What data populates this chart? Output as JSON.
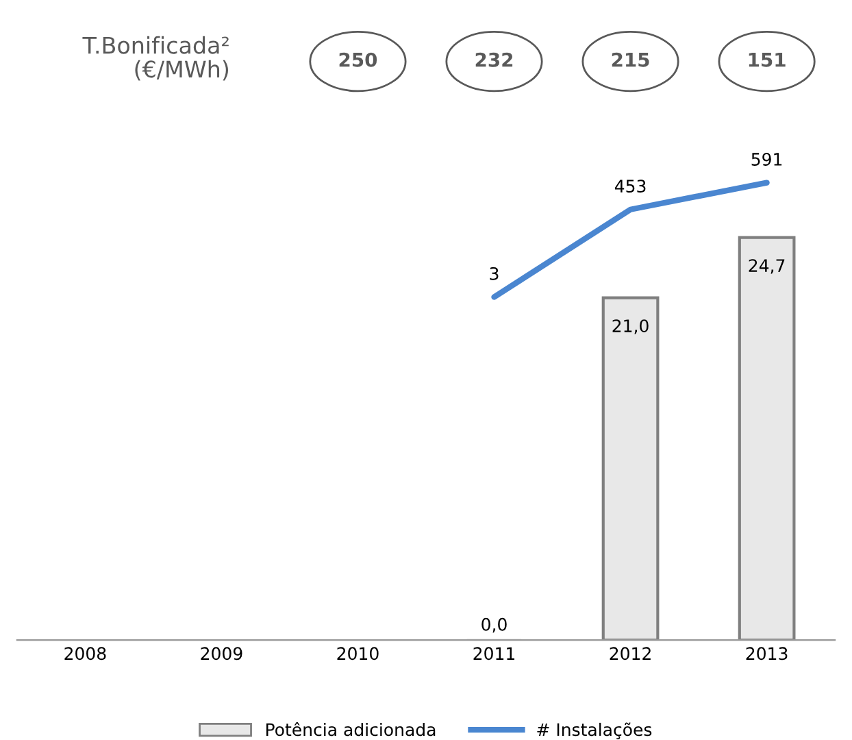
{
  "chart_data": {
    "type": "bar",
    "categories": [
      "2008",
      "2009",
      "2010",
      "2011",
      "2012",
      "2013"
    ],
    "series": [
      {
        "name": "Potência adicionada",
        "color": "#e8e8e8",
        "values": [
          null,
          null,
          null,
          0.0,
          21.0,
          24.7
        ],
        "value_labels": [
          null,
          null,
          null,
          "0,0",
          "21,0",
          "24,7"
        ]
      },
      {
        "name": "# Instalações",
        "type": "line",
        "axis": "y2",
        "color": "#4a86d0",
        "values": [
          null,
          null,
          null,
          3,
          453,
          591
        ],
        "value_labels": [
          null,
          null,
          null,
          "3",
          "453",
          "591"
        ]
      }
    ],
    "annotations": [
      "T.Bonificada²\n(€/MWh)",
      "250",
      "232",
      "215",
      "151"
    ],
    "legend": "bottom",
    "grid": false,
    "tick_labels": "x",
    "marker": "none",
    "line_style": "solid"
  }
}
